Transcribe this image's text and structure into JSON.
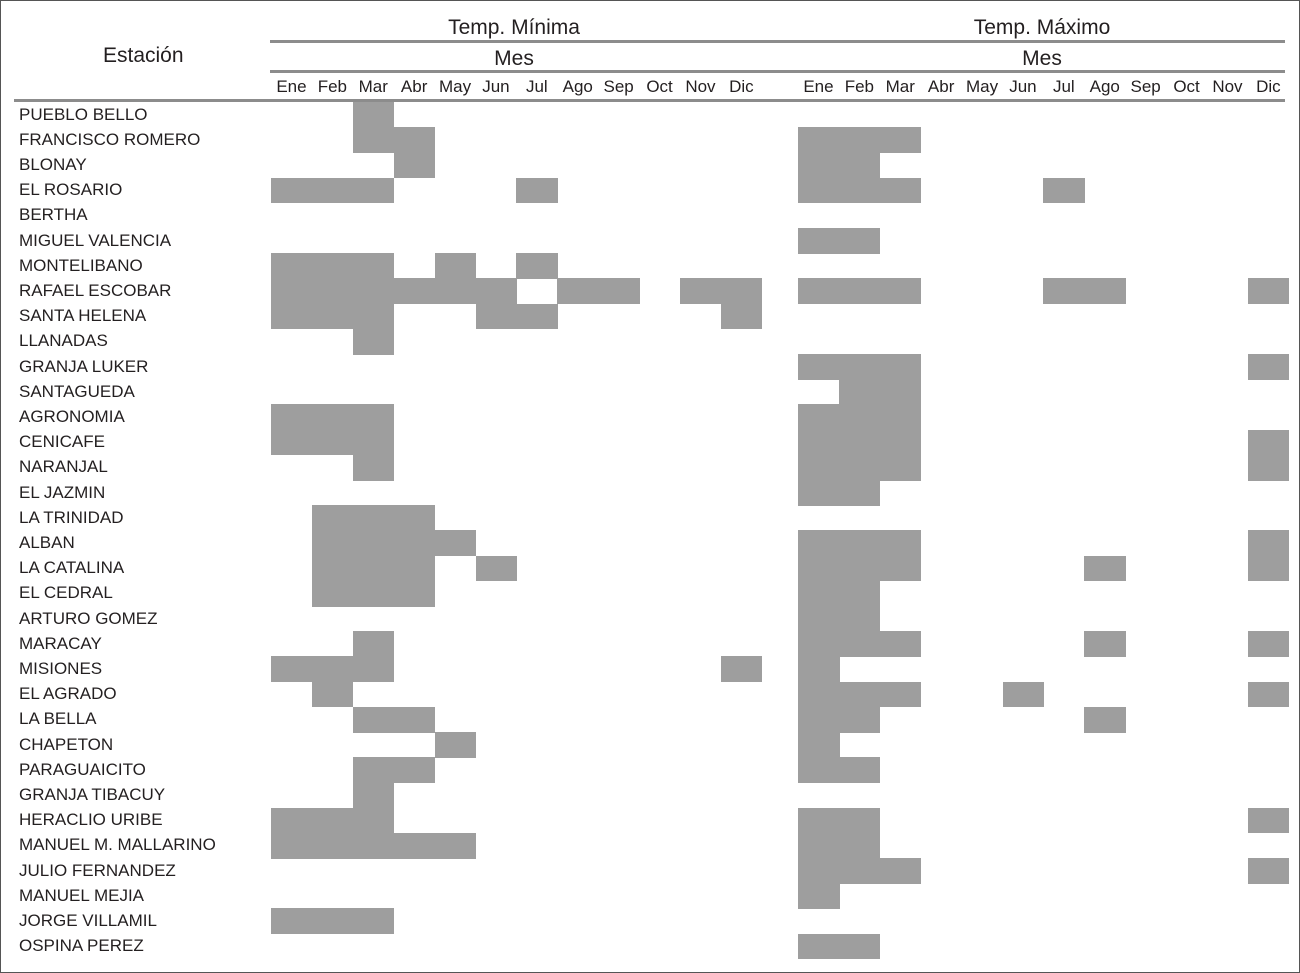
{
  "header": {
    "station_label": "Estación",
    "group_min_title": "Temp. Mínima",
    "group_max_title": "Temp. Máximo",
    "sub_header": "Mes"
  },
  "chart_data": {
    "type": "heatmap",
    "months": [
      "Ene",
      "Feb",
      "Mar",
      "Abr",
      "May",
      "Jun",
      "Jul",
      "Ago",
      "Sep",
      "Oct",
      "Nov",
      "Dic"
    ],
    "stations": [
      "PUEBLO BELLO",
      "FRANCISCO ROMERO",
      "BLONAY",
      "EL ROSARIO",
      "BERTHA",
      "MIGUEL VALENCIA",
      "MONTELIBANO",
      "RAFAEL ESCOBAR",
      "SANTA HELENA",
      "LLANADAS",
      "GRANJA LUKER",
      "SANTAGUEDA",
      "AGRONOMIA",
      "CENICAFE",
      "NARANJAL",
      "EL JAZMIN",
      "LA TRINIDAD",
      "ALBAN",
      "LA CATALINA",
      "EL CEDRAL",
      "ARTURO GOMEZ",
      "MARACAY",
      "MISIONES",
      "EL AGRADO",
      "LA BELLA",
      "CHAPETON",
      "PARAGUAICITO",
      "GRANJA TIBACUY",
      "HERACLIO URIBE",
      "MANUEL M. MALLARINO",
      "JULIO FERNANDEZ",
      "MANUEL MEJIA",
      "JORGE VILLAMIL",
      "OSPINA PEREZ"
    ],
    "cell_color": "#9e9e9e",
    "temp_min": [
      [
        3
      ],
      [
        3,
        4
      ],
      [
        4
      ],
      [
        1,
        2,
        3,
        7
      ],
      [],
      [],
      [
        1,
        2,
        3,
        5,
        7
      ],
      [
        1,
        2,
        3,
        4,
        5,
        6,
        8,
        9,
        11,
        12
      ],
      [
        1,
        2,
        3,
        6,
        7,
        12
      ],
      [
        3
      ],
      [],
      [],
      [
        1,
        2,
        3
      ],
      [
        1,
        2,
        3
      ],
      [
        3
      ],
      [],
      [
        2,
        3,
        4
      ],
      [
        2,
        3,
        4,
        5
      ],
      [
        2,
        3,
        4,
        6
      ],
      [
        2,
        3,
        4
      ],
      [],
      [
        3
      ],
      [
        1,
        2,
        3,
        12
      ],
      [
        2
      ],
      [
        3,
        4
      ],
      [
        5
      ],
      [
        3,
        4
      ],
      [
        3
      ],
      [
        1,
        2,
        3
      ],
      [
        1,
        2,
        3,
        4,
        5
      ],
      [],
      [],
      [
        1,
        2,
        3
      ],
      []
    ],
    "temp_max": [
      [],
      [
        1,
        2,
        3
      ],
      [
        1,
        2
      ],
      [
        1,
        2,
        3,
        7
      ],
      [],
      [
        1,
        2
      ],
      [],
      [
        1,
        2,
        3,
        7,
        8,
        12
      ],
      [],
      [],
      [
        1,
        2,
        3,
        12
      ],
      [
        2,
        3
      ],
      [
        1,
        2,
        3
      ],
      [
        1,
        2,
        3,
        12
      ],
      [
        1,
        2,
        3,
        12
      ],
      [
        1,
        2
      ],
      [],
      [
        1,
        2,
        3,
        12
      ],
      [
        1,
        2,
        3,
        8,
        12
      ],
      [
        1,
        2
      ],
      [
        1,
        2
      ],
      [
        1,
        2,
        3,
        8,
        12
      ],
      [
        1
      ],
      [
        1,
        2,
        3,
        6,
        12
      ],
      [
        1,
        2,
        8
      ],
      [
        1
      ],
      [
        1,
        2
      ],
      [],
      [
        1,
        2,
        12
      ],
      [
        1,
        2
      ],
      [
        1,
        2,
        3,
        12
      ],
      [
        1
      ],
      [],
      [
        1,
        2
      ]
    ]
  }
}
